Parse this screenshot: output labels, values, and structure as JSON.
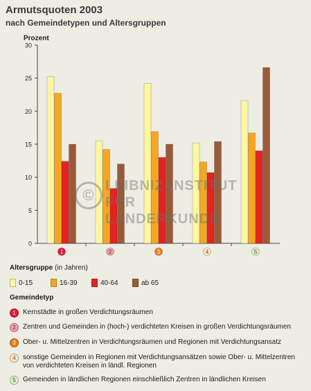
{
  "chart_data": {
    "type": "bar",
    "title": "Armutsquoten 2003",
    "subtitle": "nach Gemeindetypen und Altersgruppen",
    "ylabel": "Prozent",
    "ylim": [
      0,
      30
    ],
    "yticks": [
      0,
      5,
      10,
      15,
      20,
      25,
      30
    ],
    "categories": [
      "1",
      "2",
      "3",
      "4",
      "5"
    ],
    "series": [
      {
        "name": "0-15",
        "color": "#fdf6a3",
        "values": [
          25.2,
          15.5,
          24.2,
          15.2,
          21.6
        ]
      },
      {
        "name": "16-39",
        "color": "#f6a623",
        "values": [
          22.7,
          14.2,
          16.9,
          12.3,
          16.7
        ]
      },
      {
        "name": "40-64",
        "color": "#e42320",
        "values": [
          12.4,
          8.3,
          13.0,
          10.7,
          14.0
        ]
      },
      {
        "name": "ab 65",
        "color": "#9a5a3a",
        "values": [
          15.0,
          12.0,
          15.0,
          15.4,
          26.6
        ]
      }
    ],
    "category_badge_colors": [
      "#e5173f",
      "#f0a0a8",
      "#ee7d1a",
      "#fbe6c8",
      "#dcefc8"
    ],
    "category_badge_text_colors": [
      "#ffffff",
      "#7a1a24",
      "#ffffff",
      "#7a4a10",
      "#335522"
    ],
    "grid": false
  },
  "watermark": {
    "symbol": "©",
    "line1": "LEIBNIZ-INSTITUT",
    "line2": "FÜR LÄNDERKUNDE"
  },
  "legend": {
    "age_heading_bold": "Altersgruppe",
    "age_heading_rest": " (in Jahren)",
    "type_heading": "Gemeindetyp",
    "types": [
      {
        "num": "1",
        "text": "Kernstädte in großen Verdichtungsräumen"
      },
      {
        "num": "2",
        "text": "Zentren und Gemeinden in (hoch-) verdichteten Kreisen in großen Verdichtungsräumen"
      },
      {
        "num": "3",
        "text": "Ober- u. Mittelzentren in Verdichtungsräumen und Regionen mit Verdichtungsansatz"
      },
      {
        "num": "4",
        "text": " sonstige Gemeinden in Regionen mit Verdichtungsansätzen sowie Ober- u. Mittelzentren von verdichteten Kreisen in ländl. Regionen"
      },
      {
        "num": "5",
        "text": "Gemeinden in ländlichen Regionen einschließlich Zentren in ländlichen Kreisen"
      }
    ]
  }
}
